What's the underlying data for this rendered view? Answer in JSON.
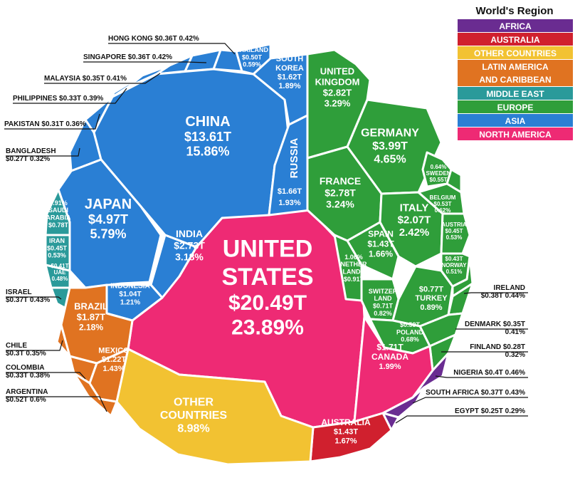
{
  "chart_data": {
    "type": "voronoi-treemap",
    "unit": "Trillion USD (GDP) and share of world GDP",
    "legend": {
      "title": "World's Region",
      "placement": "top-right",
      "items": [
        {
          "name": "AFRICA",
          "color": "#6a2c91"
        },
        {
          "name": "AUSTRALIA",
          "color": "#d0202e"
        },
        {
          "name": "OTHER COUNTRIES",
          "color": "#f2c232"
        },
        {
          "name": "LATIN AMERICA AND CARIBBEAN",
          "color": "#e07321"
        },
        {
          "name": "MIDDLE EAST",
          "color": "#2a9a9a"
        },
        {
          "name": "EUROPE",
          "color": "#2f9e3a"
        },
        {
          "name": "ASIA",
          "color": "#2a7fd4"
        },
        {
          "name": "NORTH AMERICA",
          "color": "#ee2a74"
        }
      ]
    },
    "cells": [
      {
        "name": "UNITED STATES",
        "value": "$20.49T",
        "share": "23.89%",
        "region": "NORTH AMERICA"
      },
      {
        "name": "CHINA",
        "value": "$13.61T",
        "share": "15.86%",
        "region": "ASIA"
      },
      {
        "name": "JAPAN",
        "value": "$4.97T",
        "share": "5.79%",
        "region": "ASIA"
      },
      {
        "name": "INDIA",
        "value": "$2.73T",
        "share": "3.18%",
        "region": "ASIA"
      },
      {
        "name": "RUSSIA",
        "value": "$1.66T",
        "share": "1.93%",
        "region": "ASIA"
      },
      {
        "name": "SOUTH KOREA",
        "value": "$1.62T",
        "share": "1.89%",
        "region": "ASIA"
      },
      {
        "name": "INDONESIA",
        "value": "$1.04T",
        "share": "1.21%",
        "region": "ASIA"
      },
      {
        "name": "THAILAND",
        "value": "$0.50T",
        "share": "0.59%",
        "region": "ASIA"
      },
      {
        "name": "GERMANY",
        "value": "$3.99T",
        "share": "4.65%",
        "region": "EUROPE"
      },
      {
        "name": "UNITED KINGDOM",
        "value": "$2.82T",
        "share": "3.29%",
        "region": "EUROPE"
      },
      {
        "name": "FRANCE",
        "value": "$2.78T",
        "share": "3.24%",
        "region": "EUROPE"
      },
      {
        "name": "ITALY",
        "value": "$2.07T",
        "share": "2.42%",
        "region": "EUROPE"
      },
      {
        "name": "SPAIN",
        "value": "$1.43T",
        "share": "1.66%",
        "region": "EUROPE"
      },
      {
        "name": "NETHERLANDS",
        "value": "$0.91T",
        "share": "1.06%",
        "region": "EUROPE"
      },
      {
        "name": "SWITZERLAND",
        "value": "$0.71T",
        "share": "0.82%",
        "region": "EUROPE"
      },
      {
        "name": "TURKEY",
        "value": "$0.77T",
        "share": "0.89%",
        "region": "EUROPE"
      },
      {
        "name": "POLAND",
        "value": "$0.59T",
        "share": "0.68%",
        "region": "EUROPE"
      },
      {
        "name": "SWEDEN",
        "value": "$0.55T",
        "share": "0.64%",
        "region": "EUROPE"
      },
      {
        "name": "BELGIUM",
        "value": "$0.53T",
        "share": "0.62%",
        "region": "EUROPE"
      },
      {
        "name": "AUSTRIA",
        "value": "$0.45T",
        "share": "0.53%",
        "region": "EUROPE"
      },
      {
        "name": "NORWAY",
        "value": "$0.43T",
        "share": "0.51%",
        "region": "EUROPE"
      },
      {
        "name": "CANADA",
        "value": "$1.71T",
        "share": "1.99%",
        "region": "NORTH AMERICA"
      },
      {
        "name": "AUSTRALIA",
        "value": "$1.43T",
        "share": "1.67%",
        "region": "AUSTRALIA"
      },
      {
        "name": "OTHER COUNTRIES",
        "value": "",
        "share": "8.98%",
        "region": "OTHER COUNTRIES"
      },
      {
        "name": "BRAZIL",
        "value": "$1.87T",
        "share": "2.18%",
        "region": "LATIN AMERICA AND CARIBBEAN"
      },
      {
        "name": "MEXICO",
        "value": "$1.22T",
        "share": "1.43%",
        "region": "LATIN AMERICA AND CARIBBEAN"
      },
      {
        "name": "SAUDI ARABIA",
        "value": "$0.78T",
        "share": "0.91%",
        "region": "MIDDLE EAST"
      },
      {
        "name": "IRAN",
        "value": "$0.45T",
        "share": "0.53%",
        "region": "MIDDLE EAST"
      },
      {
        "name": "UAE",
        "value": "$0.41T",
        "share": "0.48%",
        "region": "MIDDLE EAST"
      }
    ],
    "callouts": [
      {
        "name": "HONG KONG",
        "value": "$0.36T",
        "share": "0.42%",
        "region": "ASIA"
      },
      {
        "name": "SINGAPORE",
        "value": "$0.36T",
        "share": "0.42%",
        "region": "ASIA"
      },
      {
        "name": "MALAYSIA",
        "value": "$0.35T",
        "share": "0.41%",
        "region": "ASIA"
      },
      {
        "name": "PHILIPPINES",
        "value": "$0.33T",
        "share": "0.39%",
        "region": "ASIA"
      },
      {
        "name": "PAKISTAN",
        "value": "$0.31T",
        "share": "0.36%",
        "region": "ASIA"
      },
      {
        "name": "BANGLADESH",
        "value": "$0.27T",
        "share": "0.32%",
        "region": "ASIA"
      },
      {
        "name": "ISRAEL",
        "value": "$0.37T",
        "share": "0.43%",
        "region": "MIDDLE EAST"
      },
      {
        "name": "CHILE",
        "value": "$0.3T",
        "share": "0.35%",
        "region": "LATIN AMERICA AND CARIBBEAN"
      },
      {
        "name": "COLOMBIA",
        "value": "$0.33T",
        "share": "0.38%",
        "region": "LATIN AMERICA AND CARIBBEAN"
      },
      {
        "name": "ARGENTINA",
        "value": "$0.52T",
        "share": "0.6%",
        "region": "LATIN AMERICA AND CARIBBEAN"
      },
      {
        "name": "IRELAND",
        "value": "$0.38T",
        "share": "0.44%",
        "region": "EUROPE"
      },
      {
        "name": "DENMARK",
        "value": "$0.35T",
        "share": "0.41%",
        "region": "EUROPE"
      },
      {
        "name": "FINLAND",
        "value": "$0.28T",
        "share": "0.32%",
        "region": "EUROPE"
      },
      {
        "name": "NIGERIA",
        "value": "$0.4T",
        "share": "0.46%",
        "region": "AFRICA"
      },
      {
        "name": "SOUTH AFRICA",
        "value": "$0.37T",
        "share": "0.43%",
        "region": "AFRICA"
      },
      {
        "name": "EGYPT",
        "value": "$0.25T",
        "share": "0.29%",
        "region": "AFRICA"
      }
    ]
  }
}
